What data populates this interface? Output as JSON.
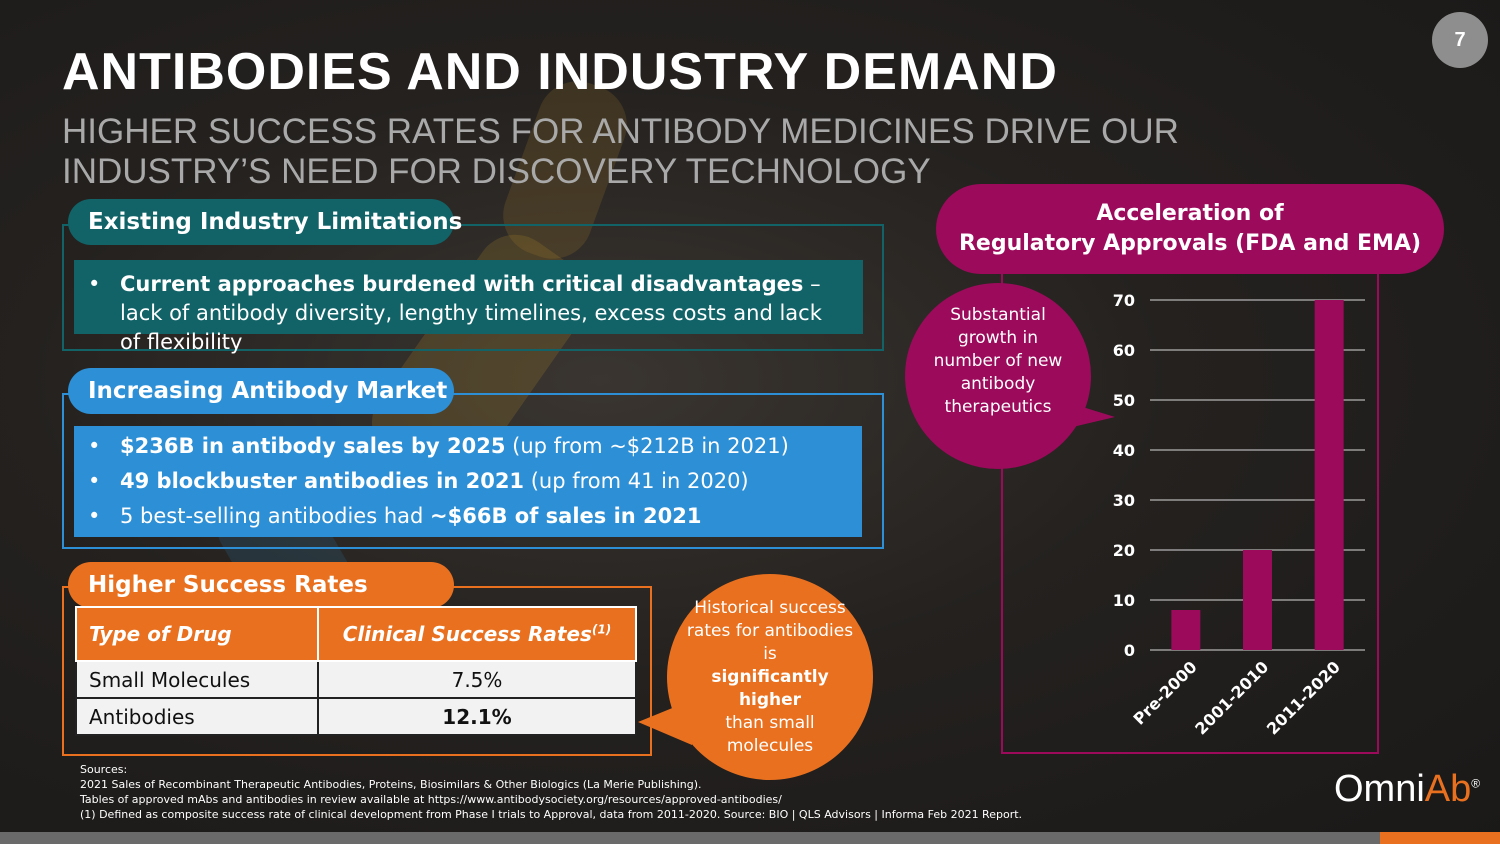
{
  "slide": {
    "page_number": "7",
    "title": "ANTIBODIES AND INDUSTRY DEMAND",
    "subtitle": "HIGHER SUCCESS RATES FOR ANTIBODY MEDICINES DRIVE OUR INDUSTRY’S NEED FOR DISCOVERY TECHNOLOGY"
  },
  "colors": {
    "teal": "#116368",
    "blue": "#2d8fd5",
    "orange": "#e8701f",
    "magenta": "#9b0a5b"
  },
  "limitations": {
    "heading": "Existing Industry Limitations",
    "bullet_bold": "Current approaches burdened with critical disadvantages",
    "bullet_rest": " – lack of antibody diversity, lengthy timelines, excess costs and lack of flexibility"
  },
  "market": {
    "heading": "Increasing Antibody Market",
    "bullets": [
      {
        "pre": "",
        "bold": "$236B in antibody sales by 2025",
        "post": " (up from ~$212B in 2021)"
      },
      {
        "pre": "",
        "bold": "49 blockbuster antibodies in 2021",
        "post": " (up from 41 in 2020)"
      },
      {
        "pre": "5 best-selling antibodies had ",
        "bold": "~$66B of sales in 2021",
        "post": ""
      }
    ]
  },
  "success": {
    "heading": "Higher Success Rates",
    "col1": "Type of Drug",
    "col2": "Clinical Success Rates",
    "col2_sup": "(1)",
    "rows": [
      {
        "drug": "Small Molecules",
        "rate": "7.5%"
      },
      {
        "drug": "Antibodies",
        "rate": "12.1%"
      }
    ],
    "bubble_pre": "Historical success rates for antibodies is",
    "bubble_bold": "significantly higher",
    "bubble_post": "than small molecules"
  },
  "approvals": {
    "heading_line1": "Acceleration of",
    "heading_line2": "Regulatory Approvals (FDA and EMA)",
    "bubble": "Substantial growth in number of new antibody therapeutics"
  },
  "chart_data": {
    "type": "bar",
    "title": "Acceleration of Regulatory Approvals (FDA and EMA)",
    "categories": [
      "Pre-2000",
      "2001-2010",
      "2011-2020"
    ],
    "values": [
      8,
      20,
      70
    ],
    "y_ticks": [
      0,
      10,
      20,
      30,
      40,
      50,
      60,
      70
    ],
    "ylim": [
      0,
      70
    ],
    "grid": true,
    "bar_color": "#9b0a5b"
  },
  "sources": {
    "label": "Sources:",
    "lines": [
      "2021 Sales of Recombinant Therapeutic Antibodies, Proteins, Biosimilars & Other Biologics (La Merie Publishing).",
      "Tables of approved mAbs and antibodies in review available at https://www.antibodysociety.org/resources/approved-antibodies/",
      "(1)   Defined as composite success rate of clinical development from Phase I trials to Approval, data from 2011-2020.  Source: BIO | QLS Advisors | Informa Feb 2021 Report."
    ]
  },
  "logo": {
    "part1": "Omni",
    "part2": "Ab",
    "mark": "®"
  }
}
